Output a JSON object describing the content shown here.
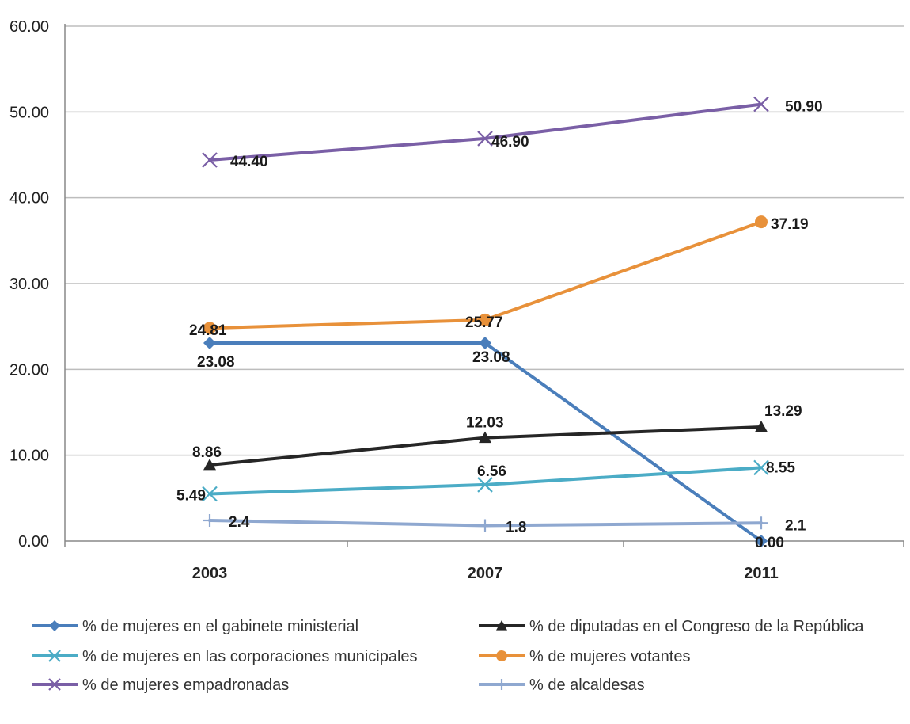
{
  "chart_data": {
    "type": "line",
    "categories": [
      "2003",
      "2007",
      "2011"
    ],
    "ylim": [
      0,
      60
    ],
    "yticks": [
      "0.00",
      "10.00",
      "20.00",
      "30.00",
      "40.00",
      "50.00",
      "60.00"
    ],
    "grid": true,
    "legend_position": "bottom",
    "series": [
      {
        "name": "% de mujeres en el gabinete ministerial",
        "values": [
          23.08,
          23.08,
          0.0
        ],
        "labels": [
          "23.08",
          "23.08",
          "0.00"
        ],
        "color": "#4a7ebb",
        "marker": "diamond"
      },
      {
        "name": "% de diputadas en el Congreso de la República",
        "values": [
          8.86,
          12.03,
          13.29
        ],
        "labels": [
          "8.86",
          "12.03",
          "13.29"
        ],
        "color": "#262626",
        "marker": "triangle"
      },
      {
        "name": "% de mujeres en las corporaciones municipales",
        "values": [
          5.49,
          6.56,
          8.55
        ],
        "labels": [
          "5.49",
          "6.56",
          "8.55"
        ],
        "color": "#4bacc6",
        "marker": "x"
      },
      {
        "name": "% de mujeres votantes",
        "values": [
          24.81,
          25.77,
          37.19
        ],
        "labels": [
          "24.81",
          "25.77",
          "37.19"
        ],
        "color": "#e8913a",
        "marker": "circle"
      },
      {
        "name": "% de mujeres empadronadas",
        "values": [
          44.4,
          46.9,
          50.9
        ],
        "labels": [
          "44.40",
          "46.90",
          "50.90"
        ],
        "color": "#7a5fa6",
        "marker": "x"
      },
      {
        "name": "% de alcaldesas",
        "values": [
          2.4,
          1.8,
          2.1
        ],
        "labels": [
          "2.4",
          "1.8",
          "2.1"
        ],
        "color": "#8fa8d0",
        "marker": "plus"
      }
    ]
  }
}
